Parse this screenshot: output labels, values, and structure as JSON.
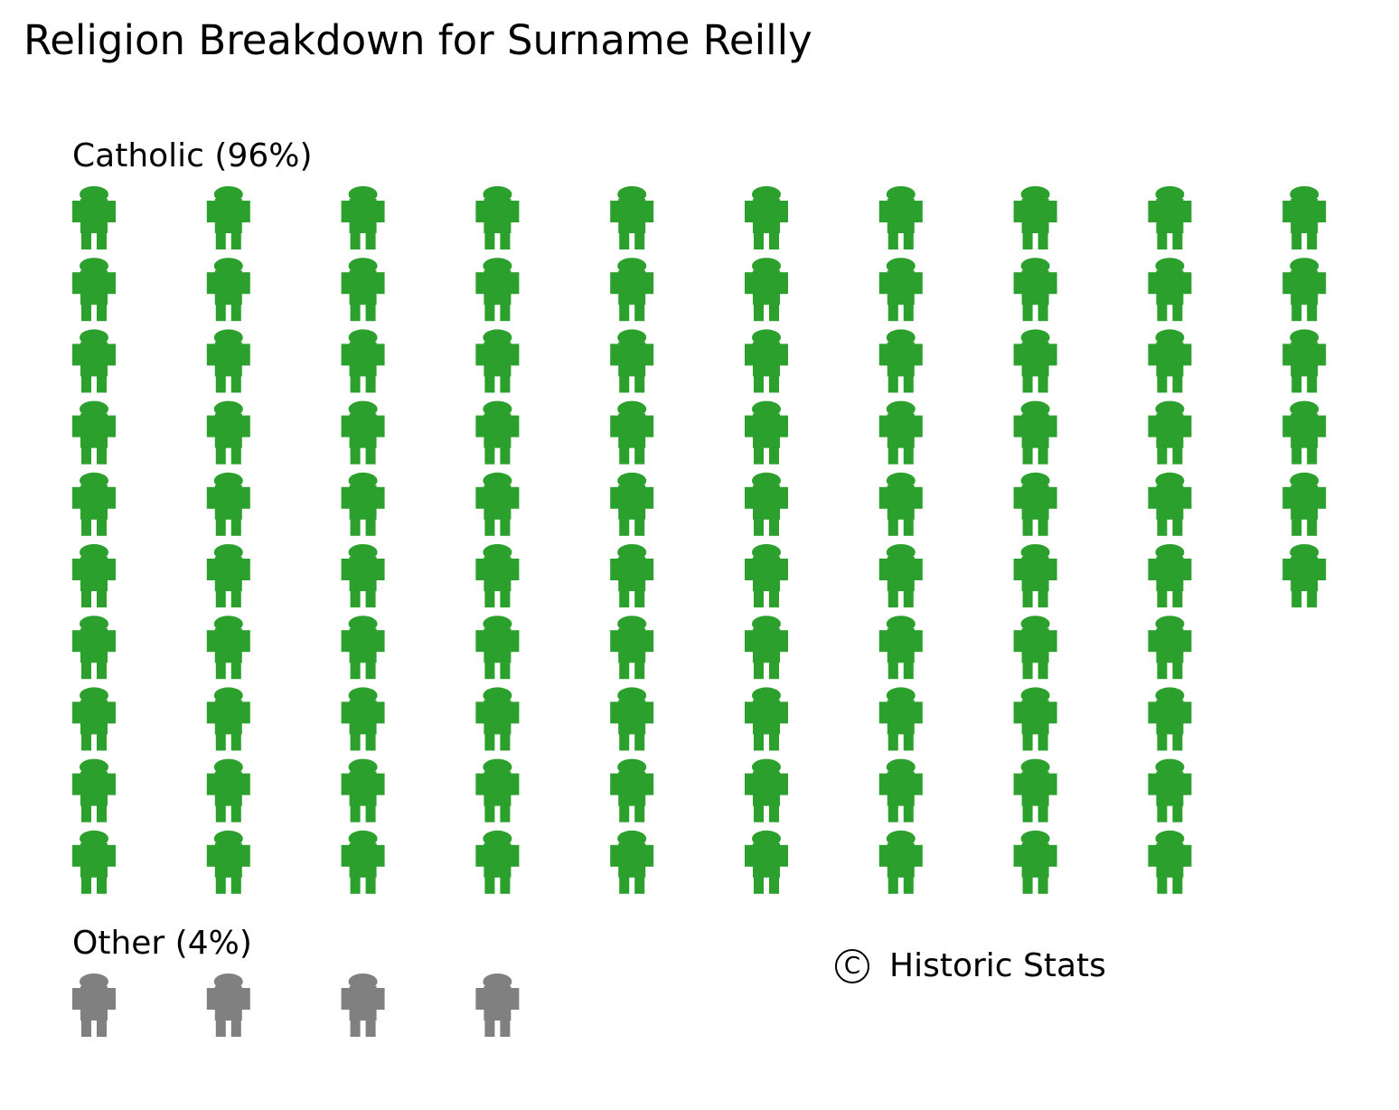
{
  "chart_data": {
    "type": "pictogram",
    "title": "Religion Breakdown for Surname Reilly",
    "units_per_icon": 1,
    "columns": 10,
    "groups": [
      {
        "name": "Catholic",
        "label": "Catholic (96%)",
        "percent": 96,
        "count": 96,
        "color": "#2ca02c"
      },
      {
        "name": "Other",
        "label": "Other (4%)",
        "percent": 4,
        "count": 4,
        "color": "#808080"
      }
    ],
    "credit": "Historic Stats",
    "credit_symbol": "C"
  }
}
